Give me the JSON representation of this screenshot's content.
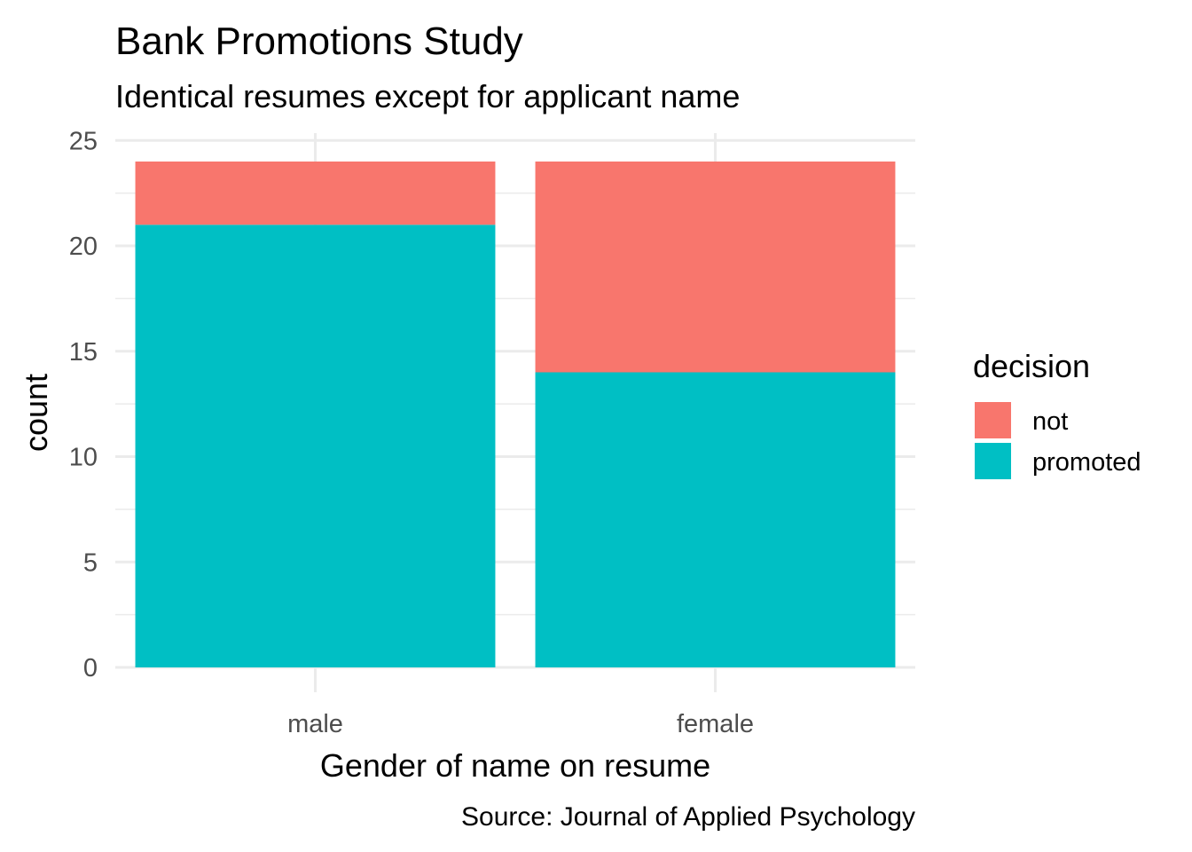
{
  "chart_data": {
    "type": "bar",
    "stacked": true,
    "title": "Bank Promotions Study",
    "subtitle": "Identical resumes except for applicant name",
    "xlabel": "Gender of name on resume",
    "ylabel": "count",
    "caption": "Source: Journal of Applied Psychology",
    "categories": [
      "male",
      "female"
    ],
    "series": [
      {
        "name": "promoted",
        "color": "#00BFC4",
        "values": [
          21,
          14
        ]
      },
      {
        "name": "not",
        "color": "#F8766D",
        "values": [
          3,
          10
        ]
      }
    ],
    "ylim": [
      0,
      25
    ],
    "y_ticks": [
      0,
      5,
      10,
      15,
      20,
      25
    ],
    "y_tick_labels": [
      "0",
      "5",
      "10",
      "15",
      "20",
      "25"
    ],
    "grid": true,
    "legend": {
      "title": "decision",
      "position": "right",
      "entries": [
        {
          "label": "not",
          "color": "#F8766D"
        },
        {
          "label": "promoted",
          "color": "#00BFC4"
        }
      ]
    }
  }
}
